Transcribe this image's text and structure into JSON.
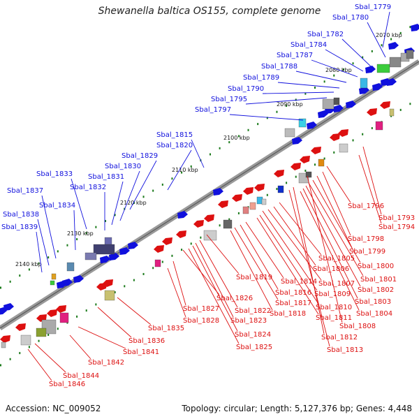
{
  "title": "Shewanella baltica OS155, complete genome",
  "footer": {
    "accession": "Accession: NC_009052",
    "summary": "Topology: circular; Length: 5,127,376 bp; Genes: 4,448"
  },
  "colors": {
    "forward": "#1010dd",
    "reverse": "#dd1010",
    "backbone": "#909090",
    "tick": "#1a7a1a"
  },
  "kbp_labels": [
    "2070 kbp",
    "2080 kbp",
    "2090 kbp",
    "2100 kbp",
    "2110 kbp",
    "2120 kbp",
    "2130 kbp",
    "2140 kbp"
  ],
  "forward_genes": [
    "Sbal_1779",
    "Sbal_1780",
    "Sbal_1782",
    "Sbal_1784",
    "Sbal_1787",
    "Sbal_1788",
    "Sbal_1789",
    "Sbal_1790",
    "Sbal_1795",
    "Sbal_1797",
    "Sbal_1815",
    "Sbal_1820",
    "Sbal_1829",
    "Sbal_1830",
    "Sbal_1831",
    "Sbal_1832",
    "Sbal_1833",
    "Sbal_1834",
    "Sbal_1837",
    "Sbal_1838",
    "Sbal_1839"
  ],
  "reverse_genes": [
    "Sbal_1796",
    "Sbal_1793",
    "Sbal_1794",
    "Sbal_1798",
    "Sbal_1799",
    "Sbal_1800",
    "Sbal_1801",
    "Sbal_1802",
    "Sbal_1803",
    "Sbal_1804",
    "Sbal_1805",
    "Sbal_1806",
    "Sbal_1807",
    "Sbal_1809",
    "Sbal_1808",
    "Sbal_1810",
    "Sbal_1811",
    "Sbal_1812",
    "Sbal_1813",
    "Sbal_1814",
    "Sbal_1816",
    "Sbal_1817",
    "Sbal_1818",
    "Sbal_1819",
    "Sbal_1822",
    "Sbal_1823",
    "Sbal_1824",
    "Sbal_1825",
    "Sbal_1826",
    "Sbal_1827",
    "Sbal_1828",
    "Sbal_1835",
    "Sbal_1836",
    "Sbal_1841",
    "Sbal_1842",
    "Sbal_1844",
    "Sbal_1846"
  ]
}
